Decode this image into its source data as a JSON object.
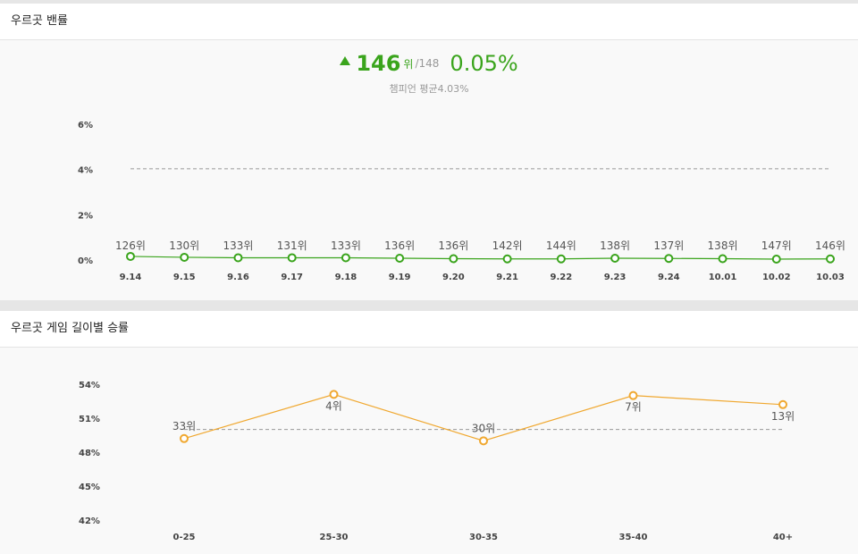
{
  "ban_section": {
    "title": "우르곳 밴률",
    "current_rank": "146",
    "rank_unit": "위",
    "rank_total": "/148",
    "current_rate": "0.05%",
    "avg_label": "챔피언 평균",
    "avg_value": "4.03%",
    "colors": {
      "accent": "#3aa41c",
      "line": "#3aa41c",
      "avg": "#999999"
    }
  },
  "win_section": {
    "title": "우르곳 게임 길이별 승률",
    "colors": {
      "line": "#f0a830",
      "avg": "#999999"
    }
  },
  "chart_data": [
    {
      "type": "line",
      "x": [
        "9.14",
        "9.15",
        "9.16",
        "9.17",
        "9.18",
        "9.19",
        "9.20",
        "9.21",
        "9.22",
        "9.23",
        "9.24",
        "10.01",
        "10.02",
        "10.03"
      ],
      "values": [
        0.16,
        0.12,
        0.1,
        0.1,
        0.1,
        0.08,
        0.06,
        0.05,
        0.05,
        0.08,
        0.07,
        0.06,
        0.04,
        0.05
      ],
      "rank_labels": [
        "126위",
        "130위",
        "133위",
        "131위",
        "133위",
        "136위",
        "136위",
        "142위",
        "144위",
        "138위",
        "137위",
        "138위",
        "147위",
        "146위"
      ],
      "yticks": [
        "6%",
        "4%",
        "2%",
        "0%"
      ],
      "ytick_values": [
        6,
        4,
        2,
        0
      ],
      "ylim": [
        0,
        6
      ],
      "average": 4.03,
      "grid": false
    },
    {
      "type": "line",
      "x": [
        "0-25",
        "25-30",
        "30-35",
        "35-40",
        "40+"
      ],
      "values": [
        49.2,
        53.1,
        49.0,
        53.0,
        52.2
      ],
      "rank_labels": [
        "33위",
        "4위",
        "30위",
        "7위",
        "13위"
      ],
      "yticks": [
        "54%",
        "51%",
        "48%",
        "45%",
        "42%"
      ],
      "ytick_values": [
        54,
        51,
        48,
        45,
        42
      ],
      "ylim": [
        42,
        54
      ],
      "average": 50,
      "grid": false
    }
  ]
}
